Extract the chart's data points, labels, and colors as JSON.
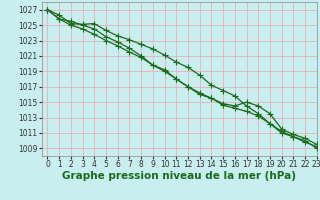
{
  "title": "Graphe pression niveau de la mer (hPa)",
  "bg_color": "#c8eef0",
  "grid_color": "#e8b0b0",
  "line_color": "#1a6b1a",
  "marker_color": "#1a6b1a",
  "xlim": [
    -0.5,
    23
  ],
  "ylim": [
    1008,
    1028
  ],
  "yticks": [
    1009,
    1011,
    1013,
    1015,
    1017,
    1019,
    1021,
    1023,
    1025,
    1027
  ],
  "xticks": [
    0,
    1,
    2,
    3,
    4,
    5,
    6,
    7,
    8,
    9,
    10,
    11,
    12,
    13,
    14,
    15,
    16,
    17,
    18,
    19,
    20,
    21,
    22,
    23
  ],
  "series": [
    [
      1027.0,
      1026.3,
      1025.2,
      1025.1,
      1025.2,
      1024.3,
      1023.6,
      1023.1,
      1022.5,
      1021.9,
      1021.1,
      1020.2,
      1019.5,
      1018.5,
      1017.2,
      1016.5,
      1015.8,
      1014.5,
      1013.5,
      1012.2,
      1011.2,
      1010.5,
      1010.0,
      1009.0
    ],
    [
      1027.0,
      1025.8,
      1025.0,
      1024.5,
      1023.8,
      1023.0,
      1022.3,
      1021.5,
      1020.8,
      1019.8,
      1019.0,
      1018.0,
      1017.0,
      1016.2,
      1015.5,
      1014.6,
      1014.2,
      1013.8,
      1013.2,
      1012.2,
      1011.0,
      1010.5,
      1009.8,
      1009.2
    ],
    [
      1027.0,
      1025.8,
      1025.5,
      1025.0,
      1024.5,
      1023.5,
      1022.8,
      1022.0,
      1021.0,
      1019.8,
      1019.2,
      1018.0,
      1017.0,
      1016.0,
      1015.5,
      1014.8,
      1014.5,
      1015.0,
      1014.5,
      1013.5,
      1011.5,
      1010.8,
      1010.3,
      1009.5
    ]
  ],
  "marker_style": "+",
  "marker_size": 4,
  "line_width": 0.9,
  "title_fontsize": 7.5,
  "tick_fontsize": 5.5
}
